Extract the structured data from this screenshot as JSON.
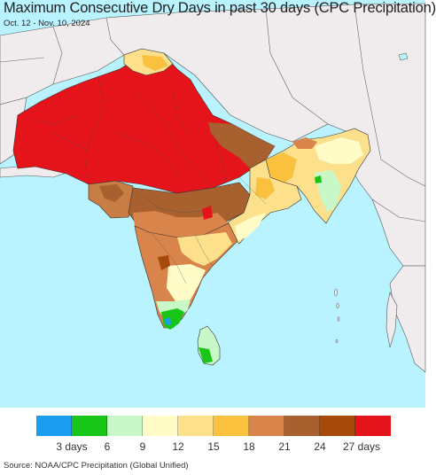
{
  "header": {
    "title": "Maximum Consecutive Dry Days in past 30 days (CPC Precipitation)",
    "date_range": "Oct. 12 - Nov. 10, 2024"
  },
  "legend": {
    "colors": [
      "#1b9ef0",
      "#17c617",
      "#c8f7c8",
      "#fffcc8",
      "#fde08c",
      "#f9c13e",
      "#d9844a",
      "#a8612e",
      "#a6490a",
      "#e5141b"
    ],
    "tick_labels": [
      "3 days",
      "6",
      "9",
      "12",
      "15",
      "18",
      "21",
      "24",
      "27 days"
    ]
  },
  "map": {
    "ocean_color": "#b9f3ff",
    "outside_land_color": "#f0ecee"
  },
  "footer": {
    "source": "Source: NOAA/CPC Precipitation (Global Unified)"
  }
}
